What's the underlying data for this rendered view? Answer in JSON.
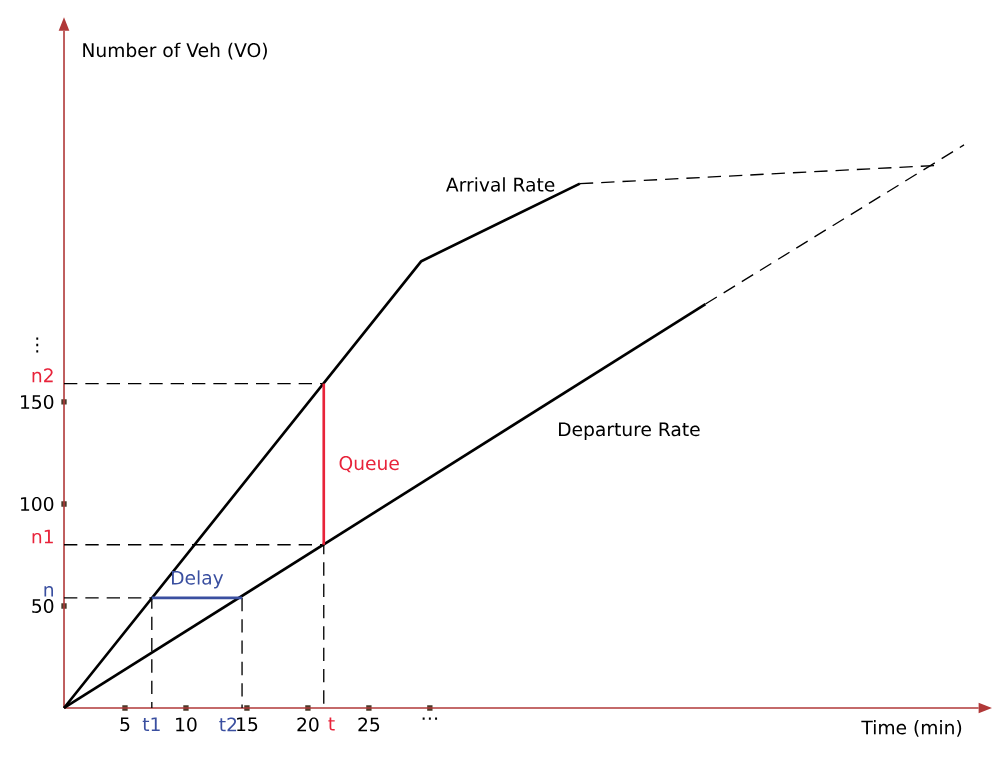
{
  "chart_data": {
    "type": "line",
    "xlabel": "Time (min)",
    "ylabel": "Number of Veh (VO)",
    "xlim": [
      0,
      75
    ],
    "ylim": [
      0,
      332
    ],
    "xticks": [
      5,
      10,
      15,
      20,
      25,
      {
        "value": 30,
        "label": "…"
      }
    ],
    "yticks": [
      50,
      100,
      150
    ],
    "marker": "none",
    "series": [
      {
        "name": "Arrival Rate",
        "color": "#000000",
        "x": [
          0,
          29.3,
          42.3
        ],
        "values": [
          0,
          219,
          257
        ]
      },
      {
        "color": "#000000",
        "x": [
          42.3,
          71.8
        ],
        "values": [
          257,
          266
        ],
        "line_style": "dashed"
      },
      {
        "name": "Departure Rate",
        "color": "#000000",
        "x": [
          0,
          52.6
        ],
        "values": [
          0,
          198
        ]
      },
      {
        "color": "#000000",
        "x": [
          52.6,
          73.8
        ],
        "values": [
          198,
          276
        ],
        "line_style": "dashed"
      },
      {
        "color": "#000000",
        "x": [
          0,
          7.2,
          7.2
        ],
        "values": [
          54,
          54,
          0
        ],
        "line_style": "dashed"
      },
      {
        "color": "#000000",
        "x": [
          14.6,
          14.6
        ],
        "values": [
          54,
          0
        ],
        "line_style": "dashed"
      },
      {
        "color": "#000000",
        "x": [
          0,
          21.3,
          21.3
        ],
        "values": [
          80,
          80,
          0
        ],
        "line_style": "dashed"
      },
      {
        "color": "#000000",
        "x": [
          0,
          21.3
        ],
        "values": [
          159,
          159
        ],
        "line_style": "dashed"
      },
      {
        "name": "Delay",
        "color": "#3a4fa0",
        "x": [
          7.2,
          14.6
        ],
        "values": [
          54,
          54
        ]
      },
      {
        "name": "Queue",
        "color": "#e8233a",
        "x": [
          21.3,
          21.3
        ],
        "values": [
          80,
          159
        ]
      }
    ],
    "annotations": [
      "⋮",
      {
        "text": "n",
        "x": 0,
        "y": 54
      },
      {
        "text": "n1",
        "x": 0,
        "y": 80
      },
      {
        "text": "n2",
        "x": 0,
        "y": 159
      },
      {
        "text": "t1",
        "x": 7.2,
        "y": 0
      },
      {
        "text": "t2",
        "x": 14.6,
        "y": 0
      },
      {
        "text": "t",
        "x": 21.3,
        "y": 0
      }
    ]
  }
}
